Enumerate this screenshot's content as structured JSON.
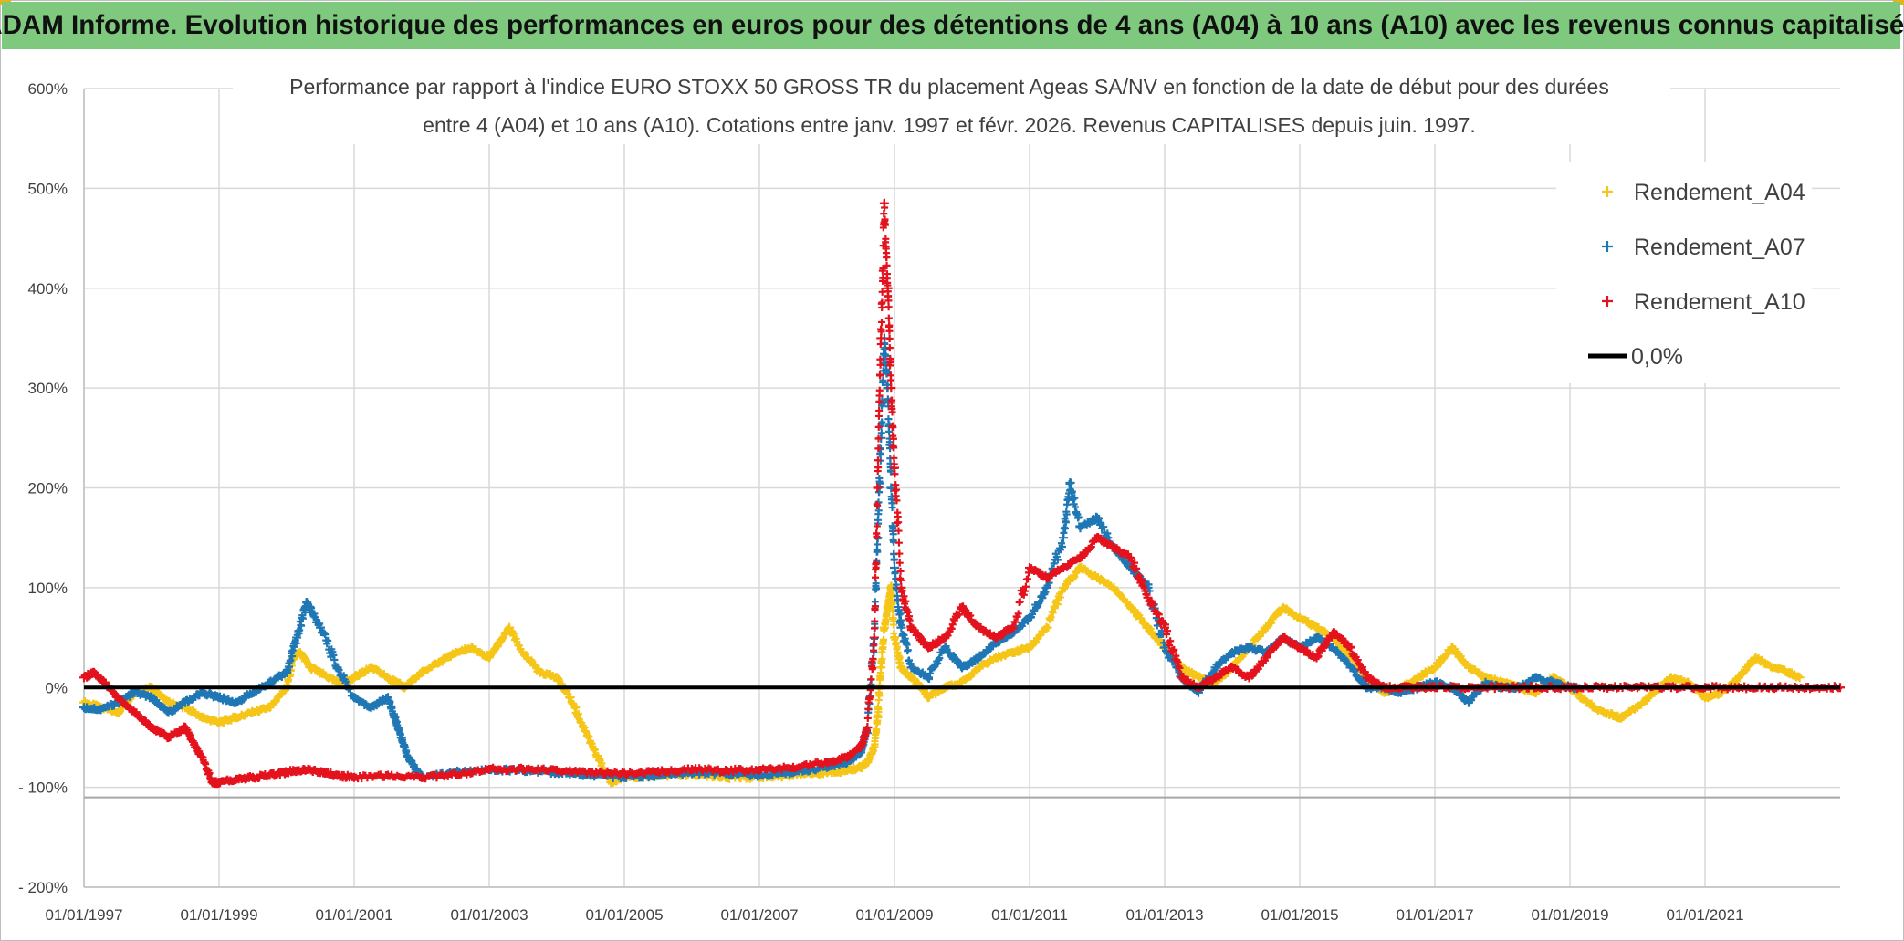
{
  "banner": {
    "title": "ADAM Informe. Evolution historique des performances en euros pour des détentions de 4 ans (A04) à 10 ans (A10) avec les revenus connus capitalisés",
    "background_color": "#7fc97f"
  },
  "chart_data": {
    "type": "scatter",
    "title_line1": "Performance par rapport à l'indice EURO STOXX 50 GROSS TR  du placement Ageas SA/NV en fonction de la date de début pour des durées",
    "title_line2": "entre 4 (A04) et 10 ans (A10). Cotations entre janv. 1997 et févr. 2026. Revenus CAPITALISES depuis juin. 1997.",
    "xlabel": "",
    "ylabel": "",
    "xlim": [
      1997.0,
      2023.0
    ],
    "ylim": [
      -200,
      600
    ],
    "x_ticks": [
      1997,
      1999,
      2001,
      2003,
      2005,
      2007,
      2009,
      2011,
      2013,
      2015,
      2017,
      2019,
      2021
    ],
    "x_tick_labels": [
      "01/01/1997",
      "01/01/1999",
      "01/01/2001",
      "01/01/2003",
      "01/01/2005",
      "01/01/2007",
      "01/01/2009",
      "01/01/2011",
      "01/01/2013",
      "01/01/2015",
      "01/01/2017",
      "01/01/2019",
      "01/01/2021"
    ],
    "y_ticks": [
      -200,
      -100,
      0,
      100,
      200,
      300,
      400,
      500,
      600
    ],
    "y_tick_labels": [
      "- 200%",
      "- 100%",
      "0%",
      "100%",
      "200%",
      "300%",
      "400%",
      "500%",
      "600%"
    ],
    "reference_line_y": -110,
    "grid": true,
    "legend_position": "top-right",
    "legend": [
      "Rendement_A04",
      "Rendement_A07",
      "Rendement_A10",
      "0,0%"
    ],
    "series": [
      {
        "name": "Rendement_A04",
        "color": "#f5c518",
        "x": [
          1997.0,
          1997.25,
          1997.5,
          1997.75,
          1998.0,
          1998.25,
          1998.5,
          1998.75,
          1999.0,
          1999.25,
          1999.5,
          1999.75,
          2000.0,
          2000.1,
          2000.2,
          2000.35,
          2000.5,
          2000.75,
          2001.0,
          2001.25,
          2001.5,
          2001.75,
          2002.0,
          2002.25,
          2002.5,
          2002.75,
          2003.0,
          2003.15,
          2003.3,
          2003.5,
          2003.75,
          2004.0,
          2004.2,
          2004.4,
          2004.6,
          2004.8,
          2005.0,
          2005.5,
          2006.0,
          2006.5,
          2007.0,
          2007.5,
          2008.0,
          2008.3,
          2008.5,
          2008.6,
          2008.7,
          2008.75,
          2008.8,
          2008.85,
          2008.9,
          2008.95,
          2009.0,
          2009.1,
          2009.25,
          2009.4,
          2009.5,
          2009.75,
          2010.0,
          2010.25,
          2010.5,
          2010.75,
          2011.0,
          2011.25,
          2011.5,
          2011.75,
          2012.0,
          2012.25,
          2012.5,
          2012.75,
          2013.0,
          2013.25,
          2013.5,
          2013.75,
          2014.0,
          2014.25,
          2014.5,
          2014.75,
          2015.0,
          2015.25,
          2015.5,
          2015.75,
          2016.0,
          2016.25,
          2016.5,
          2016.75,
          2017.0,
          2017.25,
          2017.5,
          2017.75,
          2018.0,
          2018.25,
          2018.5,
          2018.75,
          2019.0,
          2019.25,
          2019.5,
          2019.75,
          2020.0,
          2020.25,
          2020.5,
          2020.75,
          2021.0,
          2021.25,
          2021.5,
          2021.75,
          2022.0,
          2022.25,
          2022.4
        ],
        "y": [
          -15,
          -20,
          -25,
          -5,
          0,
          -15,
          -20,
          -30,
          -35,
          -30,
          -25,
          -20,
          0,
          30,
          35,
          20,
          15,
          5,
          10,
          20,
          10,
          0,
          15,
          25,
          35,
          40,
          30,
          45,
          60,
          35,
          15,
          10,
          -10,
          -40,
          -70,
          -95,
          -90,
          -88,
          -87,
          -90,
          -90,
          -88,
          -85,
          -83,
          -80,
          -75,
          -60,
          -30,
          20,
          60,
          80,
          100,
          50,
          20,
          10,
          0,
          -10,
          0,
          5,
          20,
          30,
          35,
          40,
          60,
          100,
          120,
          110,
          100,
          80,
          60,
          40,
          20,
          10,
          5,
          20,
          40,
          60,
          80,
          70,
          60,
          50,
          30,
          10,
          -5,
          0,
          10,
          20,
          40,
          20,
          10,
          5,
          0,
          -5,
          10,
          0,
          -15,
          -25,
          -30,
          -20,
          -5,
          10,
          5,
          -10,
          -5,
          10,
          30,
          20,
          15,
          10
        ]
      },
      {
        "name": "Rendement_A07",
        "color": "#1f77b4",
        "x": [
          1997.0,
          1997.25,
          1997.5,
          1997.75,
          1998.0,
          1998.25,
          1998.5,
          1998.75,
          1999.0,
          1999.25,
          1999.5,
          1999.75,
          2000.0,
          2000.15,
          2000.3,
          2000.5,
          2000.75,
          2001.0,
          2001.25,
          2001.5,
          2001.6,
          2001.7,
          2001.8,
          2002.0,
          2002.5,
          2003.0,
          2003.5,
          2004.0,
          2004.5,
          2005.0,
          2005.5,
          2006.0,
          2006.5,
          2007.0,
          2007.5,
          2008.0,
          2008.3,
          2008.5,
          2008.6,
          2008.7,
          2008.75,
          2008.8,
          2008.85,
          2008.9,
          2008.95,
          2009.0,
          2009.1,
          2009.25,
          2009.5,
          2009.75,
          2010.0,
          2010.25,
          2010.5,
          2010.75,
          2011.0,
          2011.25,
          2011.5,
          2011.6,
          2011.75,
          2012.0,
          2012.25,
          2012.5,
          2012.75,
          2013.0,
          2013.25,
          2013.5,
          2013.75,
          2014.0,
          2014.25,
          2014.5,
          2014.75,
          2015.0,
          2015.25,
          2015.5,
          2015.75,
          2016.0,
          2016.25,
          2016.5,
          2016.75,
          2017.0,
          2017.25,
          2017.5,
          2017.75,
          2018.0,
          2018.25,
          2018.5,
          2018.75,
          2019.0,
          2019.1
        ],
        "y": [
          -20,
          -22,
          -15,
          -5,
          -10,
          -25,
          -15,
          -5,
          -10,
          -15,
          -5,
          5,
          15,
          50,
          85,
          60,
          20,
          -10,
          -20,
          -10,
          -30,
          -50,
          -70,
          -90,
          -85,
          -82,
          -83,
          -85,
          -88,
          -90,
          -88,
          -86,
          -86,
          -88,
          -85,
          -80,
          -75,
          -65,
          -40,
          50,
          150,
          250,
          350,
          300,
          200,
          120,
          60,
          20,
          10,
          40,
          20,
          30,
          45,
          55,
          70,
          100,
          150,
          205,
          160,
          170,
          140,
          120,
          100,
          40,
          10,
          -5,
          20,
          35,
          40,
          35,
          50,
          40,
          50,
          40,
          20,
          0,
          0,
          -5,
          0,
          5,
          0,
          -15,
          5,
          0,
          0,
          10,
          5,
          0,
          0
        ]
      },
      {
        "name": "Rendement_A10",
        "color": "#e3121c",
        "x": [
          1997.0,
          1997.15,
          1997.3,
          1997.5,
          1997.75,
          1998.0,
          1998.25,
          1998.5,
          1998.65,
          1998.75,
          1998.9,
          1999.0,
          1999.25,
          1999.5,
          1999.75,
          2000.0,
          2000.25,
          2000.5,
          2000.75,
          2001.0,
          2001.5,
          2002.0,
          2002.5,
          2003.0,
          2003.5,
          2004.0,
          2004.5,
          2005.0,
          2005.5,
          2006.0,
          2006.5,
          2007.0,
          2007.5,
          2008.0,
          2008.3,
          2008.5,
          2008.6,
          2008.7,
          2008.75,
          2008.8,
          2008.85,
          2008.9,
          2008.95,
          2009.0,
          2009.1,
          2009.25,
          2009.5,
          2009.75,
          2010.0,
          2010.25,
          2010.5,
          2010.75,
          2011.0,
          2011.25,
          2011.5,
          2011.75,
          2012.0,
          2012.25,
          2012.5,
          2012.75,
          2013.0,
          2013.25,
          2013.5,
          2013.75,
          2014.0,
          2014.25,
          2014.5,
          2014.75,
          2015.0,
          2015.25,
          2015.5,
          2015.75,
          2016.0,
          2016.25,
          2016.5,
          2016.75,
          2017.0,
          2017.5,
          2018.0,
          2018.5,
          2019.0,
          2019.5,
          2020.0,
          2020.5,
          2021.0,
          2021.5,
          2022.0,
          2022.5,
          2023.0
        ],
        "y": [
          10,
          15,
          5,
          -10,
          -25,
          -40,
          -50,
          -40,
          -60,
          -70,
          -95,
          -95,
          -92,
          -90,
          -88,
          -85,
          -82,
          -85,
          -88,
          -90,
          -88,
          -90,
          -87,
          -82,
          -82,
          -83,
          -85,
          -86,
          -84,
          -82,
          -83,
          -83,
          -80,
          -75,
          -70,
          -60,
          -40,
          50,
          200,
          350,
          485,
          400,
          300,
          220,
          100,
          60,
          40,
          50,
          80,
          60,
          50,
          60,
          120,
          110,
          120,
          130,
          150,
          140,
          130,
          90,
          60,
          10,
          0,
          10,
          20,
          10,
          30,
          50,
          40,
          30,
          55,
          40,
          10,
          0,
          0,
          0,
          0,
          0,
          0,
          0,
          0,
          0,
          0,
          0,
          0,
          0,
          0,
          0,
          0
        ]
      },
      {
        "name": "0,0%",
        "color": "#000000",
        "x": [
          1997.0,
          2023.0
        ],
        "y": [
          0,
          0
        ]
      }
    ]
  }
}
